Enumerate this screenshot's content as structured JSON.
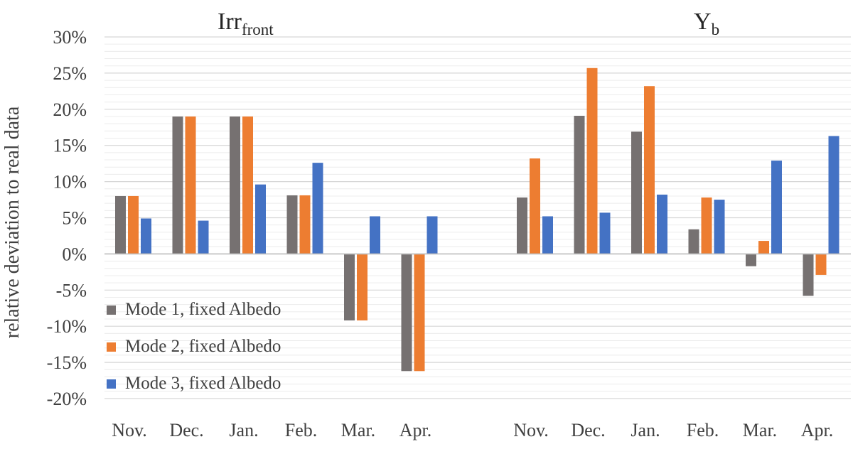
{
  "chart_data": {
    "type": "bar",
    "ylabel": "relative deviation to real data",
    "ylim": [
      -20,
      30
    ],
    "yticks": [
      "-20%",
      "-15%",
      "-10%",
      "-5%",
      "0%",
      "5%",
      "10%",
      "15%",
      "20%",
      "25%",
      "30%"
    ],
    "grid": true,
    "legend_position": "bottom-left",
    "panels": [
      {
        "title": "Irr",
        "title_sub": "front",
        "categories": [
          "Nov.",
          "Dec.",
          "Jan.",
          "Feb.",
          "Mar.",
          "Apr."
        ],
        "series": [
          {
            "name": "Mode 1, fixed Albedo",
            "values": [
              8.0,
              19.0,
              19.0,
              8.1,
              -9.2,
              -16.2
            ]
          },
          {
            "name": "Mode 2, fixed Albedo",
            "values": [
              8.0,
              19.0,
              19.0,
              8.1,
              -9.2,
              -16.2
            ]
          },
          {
            "name": "Mode 3, fixed Albedo",
            "values": [
              4.9,
              4.6,
              9.6,
              12.6,
              5.2,
              5.2
            ]
          }
        ]
      },
      {
        "title": "Y",
        "title_sub": "b",
        "categories": [
          "Nov.",
          "Dec.",
          "Jan.",
          "Feb.",
          "Mar.",
          "Apr."
        ],
        "series": [
          {
            "name": "Mode 1, fixed Albedo",
            "values": [
              7.8,
              19.1,
              16.9,
              3.4,
              -1.7,
              -5.8
            ]
          },
          {
            "name": "Mode 2, fixed Albedo",
            "values": [
              13.2,
              25.7,
              23.2,
              7.8,
              1.8,
              -2.9
            ]
          },
          {
            "name": "Mode 3, fixed Albedo",
            "values": [
              5.2,
              5.7,
              8.2,
              7.5,
              12.9,
              16.3
            ]
          }
        ]
      }
    ],
    "colors": [
      "#767171",
      "#ED7D31",
      "#4472C4"
    ]
  }
}
